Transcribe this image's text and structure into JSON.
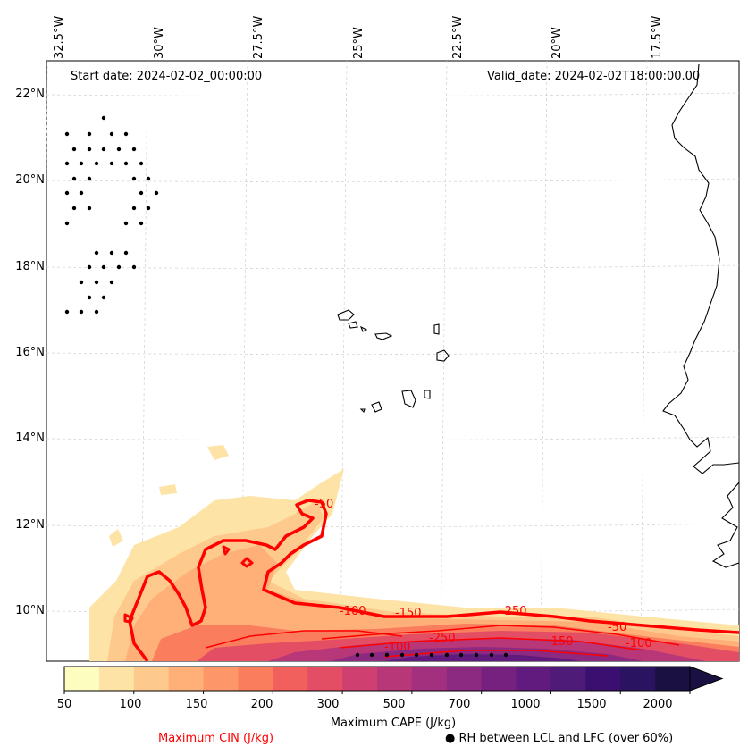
{
  "map": {
    "start_date": "Start date: 2024-02-02_00:00:00",
    "valid_date": "Valid_date: 2024-02-02T18:00:00.00",
    "longitude_labels": [
      "32.5°W",
      "30°W",
      "27.5°W",
      "25°W",
      "22.5°W",
      "20°W",
      "17.5°W"
    ],
    "latitude_labels": [
      "22°N",
      "20°N",
      "18°N",
      "16°N",
      "14°N",
      "12°N",
      "10°N"
    ],
    "colors": {
      "cin_contour": "#ff0000",
      "coastline": "#000000",
      "gridline": "#d0d0d0"
    },
    "cin_contour_labels": [
      "-50",
      "-100",
      "-150",
      "-250",
      "-100",
      "-250",
      "-150",
      "-100",
      "-50"
    ]
  },
  "colorbar": {
    "title": "Maximum CAPE (J/kg)",
    "ticks": [
      "50",
      "100",
      "150",
      "200",
      "300",
      "500",
      "700",
      "1000",
      "1500",
      "2000"
    ],
    "colors": [
      "#fcfdbf",
      "#fde4a6",
      "#fec98d",
      "#feb078",
      "#fd9668",
      "#fa7d5e",
      "#f1605d",
      "#e34e65",
      "#cf4070",
      "#b73779",
      "#a3307e",
      "#8c2981",
      "#76207f",
      "#611a7d",
      "#4e1b79",
      "#3b0f70",
      "#2a1361",
      "#1a1042"
    ]
  },
  "legend": {
    "cin_label": "Maximum CIN (J/kg)",
    "rh_label": "RH between LCL and LFC (over 60%)",
    "rh_marker": "●"
  }
}
